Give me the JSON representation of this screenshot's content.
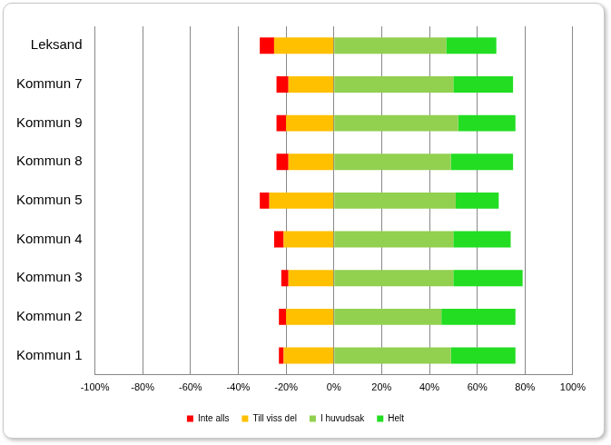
{
  "chart_data": {
    "type": "bar",
    "orientation": "horizontal",
    "stacked": true,
    "grid": true,
    "legend": "bottom",
    "categories": [
      "Leksand",
      "Kommun 7",
      "Kommun 9",
      "Kommun 8",
      "Kommun 5",
      "Kommun 4",
      "Kommun 3",
      "Kommun 2",
      "Kommun 1"
    ],
    "series": [
      {
        "name": "Inte alls",
        "color": "#ff0000",
        "values": [
          -6,
          -5,
          -4,
          -5,
          -4,
          -4,
          -3,
          -3,
          -2
        ]
      },
      {
        "name": "Till viss del",
        "color": "#ffc000",
        "values": [
          -25,
          -19,
          -20,
          -19,
          -27,
          -21,
          -19,
          -20,
          -21
        ]
      },
      {
        "name": "I huvudsak",
        "color": "#92d050",
        "values": [
          47,
          50,
          52,
          49,
          51,
          50,
          50,
          45,
          49
        ]
      },
      {
        "name": "Helt",
        "color": "#22dd22",
        "values": [
          21,
          25,
          24,
          26,
          18,
          24,
          29,
          31,
          27
        ]
      }
    ],
    "xlim": [
      -100,
      100
    ],
    "xticks": [
      {
        "value": -100,
        "label": "-100%"
      },
      {
        "value": -80,
        "label": "-80%"
      },
      {
        "value": -60,
        "label": "-60%"
      },
      {
        "value": -40,
        "label": "-40%"
      },
      {
        "value": -20,
        "label": "-20%"
      },
      {
        "value": 0,
        "label": "0%"
      },
      {
        "value": 20,
        "label": "20%"
      },
      {
        "value": 40,
        "label": "40%"
      },
      {
        "value": 60,
        "label": "60%"
      },
      {
        "value": 80,
        "label": "80%"
      },
      {
        "value": 100,
        "label": "100%"
      }
    ]
  }
}
